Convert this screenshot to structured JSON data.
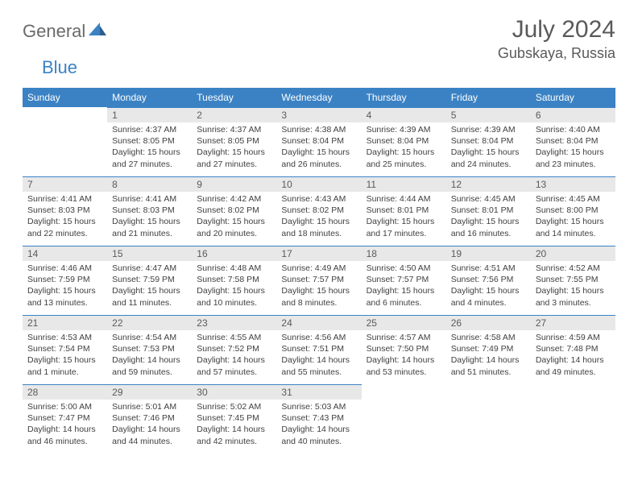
{
  "logo": {
    "part1": "General",
    "part2": "Blue"
  },
  "title": "July 2024",
  "location": "Gubskaya, Russia",
  "colors": {
    "header_bg": "#3b82c4",
    "header_text": "#ffffff",
    "daynum_bg": "#e8e8e8",
    "daynum_border": "#3b82c4",
    "body_text": "#404040",
    "title_text": "#5a5a5a",
    "logo_gray": "#6a6a6a",
    "logo_blue": "#3b82c4"
  },
  "weekdays": [
    "Sunday",
    "Monday",
    "Tuesday",
    "Wednesday",
    "Thursday",
    "Friday",
    "Saturday"
  ],
  "first_weekday_index": 1,
  "days": [
    {
      "n": 1,
      "sunrise": "4:37 AM",
      "sunset": "8:05 PM",
      "daylight": "15 hours and 27 minutes."
    },
    {
      "n": 2,
      "sunrise": "4:37 AM",
      "sunset": "8:05 PM",
      "daylight": "15 hours and 27 minutes."
    },
    {
      "n": 3,
      "sunrise": "4:38 AM",
      "sunset": "8:04 PM",
      "daylight": "15 hours and 26 minutes."
    },
    {
      "n": 4,
      "sunrise": "4:39 AM",
      "sunset": "8:04 PM",
      "daylight": "15 hours and 25 minutes."
    },
    {
      "n": 5,
      "sunrise": "4:39 AM",
      "sunset": "8:04 PM",
      "daylight": "15 hours and 24 minutes."
    },
    {
      "n": 6,
      "sunrise": "4:40 AM",
      "sunset": "8:04 PM",
      "daylight": "15 hours and 23 minutes."
    },
    {
      "n": 7,
      "sunrise": "4:41 AM",
      "sunset": "8:03 PM",
      "daylight": "15 hours and 22 minutes."
    },
    {
      "n": 8,
      "sunrise": "4:41 AM",
      "sunset": "8:03 PM",
      "daylight": "15 hours and 21 minutes."
    },
    {
      "n": 9,
      "sunrise": "4:42 AM",
      "sunset": "8:02 PM",
      "daylight": "15 hours and 20 minutes."
    },
    {
      "n": 10,
      "sunrise": "4:43 AM",
      "sunset": "8:02 PM",
      "daylight": "15 hours and 18 minutes."
    },
    {
      "n": 11,
      "sunrise": "4:44 AM",
      "sunset": "8:01 PM",
      "daylight": "15 hours and 17 minutes."
    },
    {
      "n": 12,
      "sunrise": "4:45 AM",
      "sunset": "8:01 PM",
      "daylight": "15 hours and 16 minutes."
    },
    {
      "n": 13,
      "sunrise": "4:45 AM",
      "sunset": "8:00 PM",
      "daylight": "15 hours and 14 minutes."
    },
    {
      "n": 14,
      "sunrise": "4:46 AM",
      "sunset": "7:59 PM",
      "daylight": "15 hours and 13 minutes."
    },
    {
      "n": 15,
      "sunrise": "4:47 AM",
      "sunset": "7:59 PM",
      "daylight": "15 hours and 11 minutes."
    },
    {
      "n": 16,
      "sunrise": "4:48 AM",
      "sunset": "7:58 PM",
      "daylight": "15 hours and 10 minutes."
    },
    {
      "n": 17,
      "sunrise": "4:49 AM",
      "sunset": "7:57 PM",
      "daylight": "15 hours and 8 minutes."
    },
    {
      "n": 18,
      "sunrise": "4:50 AM",
      "sunset": "7:57 PM",
      "daylight": "15 hours and 6 minutes."
    },
    {
      "n": 19,
      "sunrise": "4:51 AM",
      "sunset": "7:56 PM",
      "daylight": "15 hours and 4 minutes."
    },
    {
      "n": 20,
      "sunrise": "4:52 AM",
      "sunset": "7:55 PM",
      "daylight": "15 hours and 3 minutes."
    },
    {
      "n": 21,
      "sunrise": "4:53 AM",
      "sunset": "7:54 PM",
      "daylight": "15 hours and 1 minute."
    },
    {
      "n": 22,
      "sunrise": "4:54 AM",
      "sunset": "7:53 PM",
      "daylight": "14 hours and 59 minutes."
    },
    {
      "n": 23,
      "sunrise": "4:55 AM",
      "sunset": "7:52 PM",
      "daylight": "14 hours and 57 minutes."
    },
    {
      "n": 24,
      "sunrise": "4:56 AM",
      "sunset": "7:51 PM",
      "daylight": "14 hours and 55 minutes."
    },
    {
      "n": 25,
      "sunrise": "4:57 AM",
      "sunset": "7:50 PM",
      "daylight": "14 hours and 53 minutes."
    },
    {
      "n": 26,
      "sunrise": "4:58 AM",
      "sunset": "7:49 PM",
      "daylight": "14 hours and 51 minutes."
    },
    {
      "n": 27,
      "sunrise": "4:59 AM",
      "sunset": "7:48 PM",
      "daylight": "14 hours and 49 minutes."
    },
    {
      "n": 28,
      "sunrise": "5:00 AM",
      "sunset": "7:47 PM",
      "daylight": "14 hours and 46 minutes."
    },
    {
      "n": 29,
      "sunrise": "5:01 AM",
      "sunset": "7:46 PM",
      "daylight": "14 hours and 44 minutes."
    },
    {
      "n": 30,
      "sunrise": "5:02 AM",
      "sunset": "7:45 PM",
      "daylight": "14 hours and 42 minutes."
    },
    {
      "n": 31,
      "sunrise": "5:03 AM",
      "sunset": "7:43 PM",
      "daylight": "14 hours and 40 minutes."
    }
  ],
  "labels": {
    "sunrise": "Sunrise:",
    "sunset": "Sunset:",
    "daylight": "Daylight:"
  }
}
